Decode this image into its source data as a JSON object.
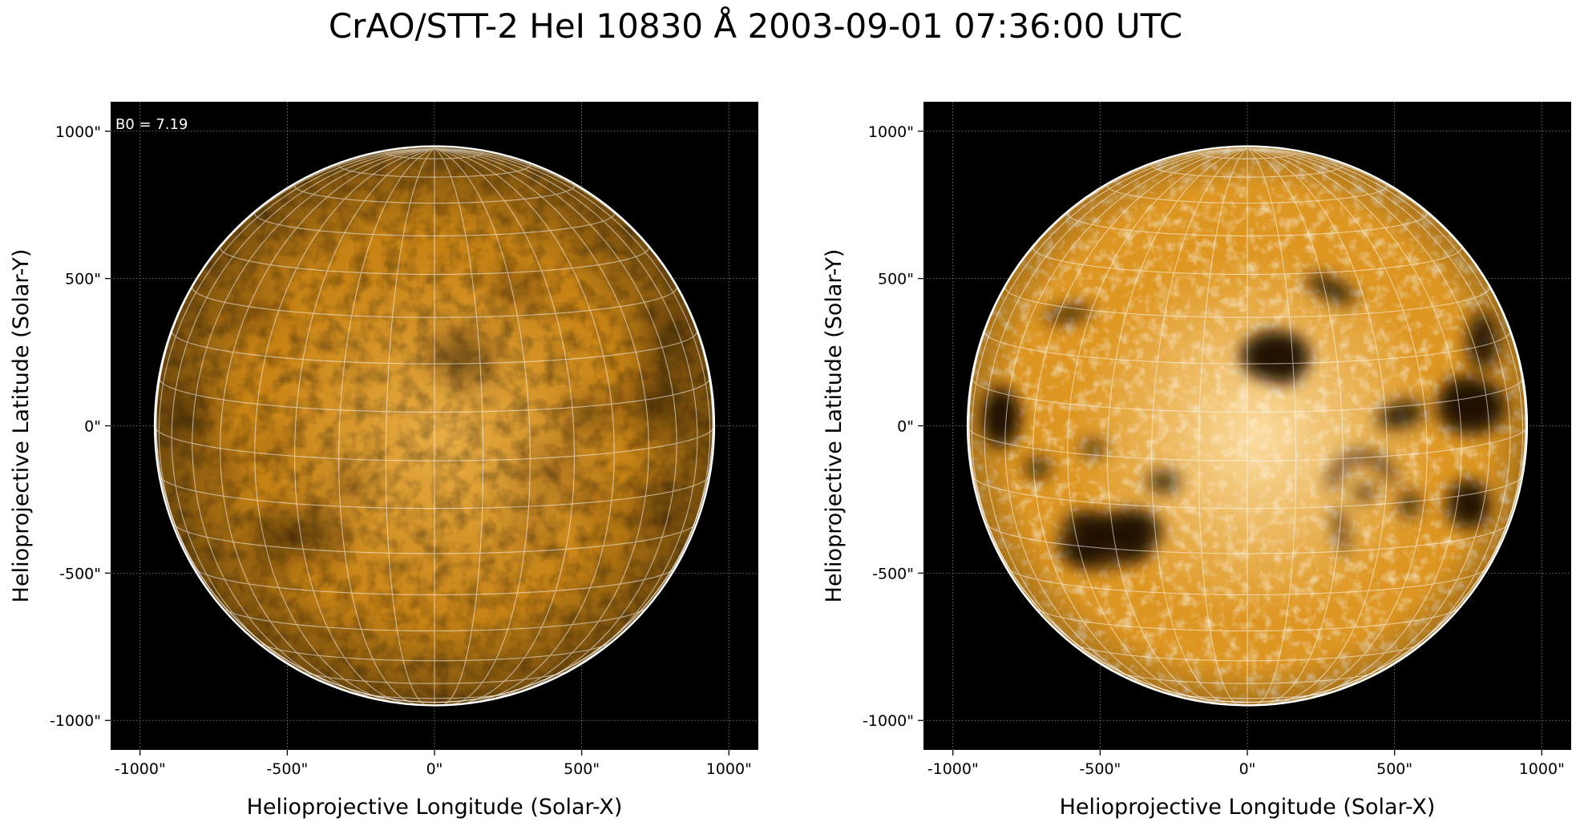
{
  "figure": {
    "title": "CrAO/STT-2 HeI 10830 Å 2003-09-01 07:36:00 UTC"
  },
  "panels": [
    {
      "id": "left",
      "corner_text": "B0 = 7.19",
      "xlabel": "Helioprojective Longitude (Solar-X)",
      "ylabel": "Helioprojective Latitude (Solar-Y)",
      "x_ticks": [
        -1000,
        -500,
        0,
        500,
        1000
      ],
      "y_ticks": [
        1000,
        500,
        0,
        -500,
        -1000
      ],
      "x_tick_labels": [
        "-1000\"",
        "-500\"",
        "0\"",
        "500\"",
        "1000\""
      ],
      "y_tick_labels": [
        "1000\"",
        "500\"",
        "0\"",
        "-500\"",
        "-1000\""
      ],
      "xlim": [
        -1100,
        1100
      ],
      "ylim": [
        -1100,
        1100
      ],
      "solar_radius_arcsec": 950,
      "b0_deg": 7.19,
      "contrast": "normal",
      "disk_color": "#d28a16",
      "disk_highlight_color": "#e9ad45"
    },
    {
      "id": "right",
      "corner_text": "",
      "xlabel": "Helioprojective Longitude (Solar-X)",
      "ylabel": "Helioprojective Latitude (Solar-Y)",
      "x_ticks": [
        -1000,
        -500,
        0,
        500,
        1000
      ],
      "y_ticks": [
        1000,
        500,
        0,
        -500,
        -1000
      ],
      "x_tick_labels": [
        "-1000\"",
        "-500\"",
        "0\"",
        "500\"",
        "1000\""
      ],
      "y_tick_labels": [
        "1000\"",
        "500\"",
        "0\"",
        "-500\"",
        "-1000\""
      ],
      "xlim": [
        -1100,
        1100
      ],
      "ylim": [
        -1100,
        1100
      ],
      "solar_radius_arcsec": 950,
      "b0_deg": 7.19,
      "contrast": "enhanced",
      "disk_color": "#e39a22",
      "disk_highlight_color": "#fbdca0"
    }
  ],
  "colors": {
    "background": "#000000",
    "limb": "#ffffff",
    "grid": "#ffffff",
    "dark_feature": "#1a0d00"
  }
}
